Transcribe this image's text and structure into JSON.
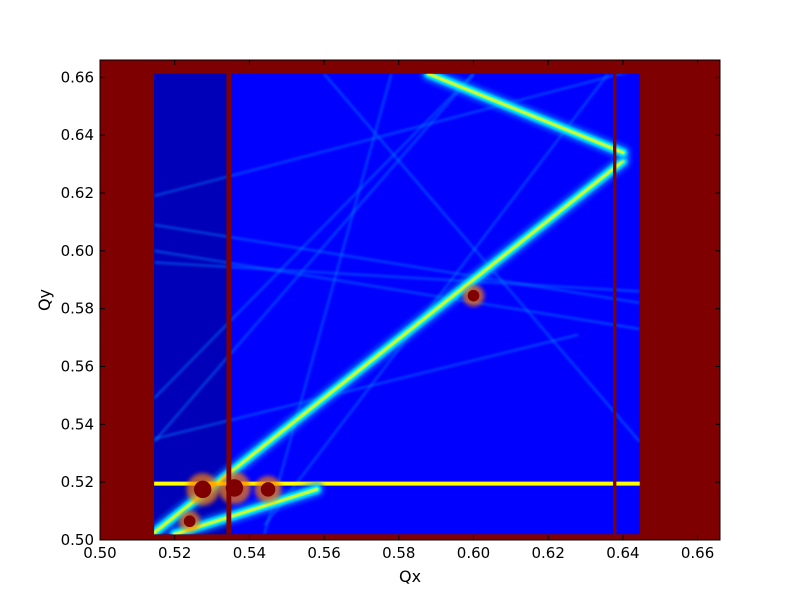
{
  "chart_data": {
    "type": "heatmap",
    "title": "",
    "xlabel": "Qx",
    "ylabel": "Qy",
    "xlim": [
      0.5,
      0.666
    ],
    "ylim": [
      0.5,
      0.666
    ],
    "grid": false,
    "legend": "none",
    "x_ticks": [
      "0.50",
      "0.52",
      "0.54",
      "0.56",
      "0.58",
      "0.60",
      "0.62",
      "0.64",
      "0.66"
    ],
    "y_ticks": [
      "0.50",
      "0.52",
      "0.54",
      "0.56",
      "0.58",
      "0.60",
      "0.62",
      "0.64",
      "0.66"
    ],
    "colormap": [
      "#00007f",
      "#0000ff",
      "#0080ff",
      "#00ffff",
      "#80ff80",
      "#ffff00",
      "#ff8000",
      "#ff0000",
      "#7f0000"
    ],
    "background_value_color": "#7f0000",
    "scan_region": {
      "x": [
        0.5145,
        0.6445
      ],
      "y": [
        0.502,
        0.6612
      ]
    },
    "colored_lines": [
      {
        "name": "diagonal-resonance",
        "x1": 0.514,
        "y1": 0.502,
        "x2": 0.64,
        "y2": 0.631,
        "level": 0.55
      },
      {
        "name": "horizontal-resonance",
        "x1": 0.5145,
        "y1": 0.5195,
        "x2": 0.6445,
        "y2": 0.5195,
        "level": 0.6
      },
      {
        "name": "upper-right-band",
        "x1": 0.588,
        "y1": 0.6612,
        "x2": 0.64,
        "y2": 0.634,
        "level": 0.5
      },
      {
        "name": "left-fan-lower",
        "x1": 0.52,
        "y1": 0.502,
        "x2": 0.558,
        "y2": 0.5175,
        "level": 0.55
      }
    ],
    "faint_lines": [
      {
        "x1": 0.5145,
        "y1": 0.619,
        "x2": 0.6445,
        "y2": 0.663
      },
      {
        "x1": 0.5145,
        "y1": 0.609,
        "x2": 0.6445,
        "y2": 0.582
      },
      {
        "x1": 0.5145,
        "y1": 0.6,
        "x2": 0.6445,
        "y2": 0.573
      },
      {
        "x1": 0.5145,
        "y1": 0.596,
        "x2": 0.6445,
        "y2": 0.586
      },
      {
        "x1": 0.56,
        "y1": 0.6612,
        "x2": 0.6445,
        "y2": 0.534
      },
      {
        "x1": 0.6,
        "y1": 0.6612,
        "x2": 0.5145,
        "y2": 0.549
      },
      {
        "x1": 0.544,
        "y1": 0.505,
        "x2": 0.636,
        "y2": 0.6612
      },
      {
        "x1": 0.5145,
        "y1": 0.534,
        "x2": 0.6,
        "y2": 0.6612
      },
      {
        "x1": 0.5145,
        "y1": 0.5535,
        "x2": 0.6445,
        "y2": 0.5535
      },
      {
        "x1": 0.5145,
        "y1": 0.535,
        "x2": 0.628,
        "y2": 0.571
      },
      {
        "x1": 0.566,
        "y1": 0.502,
        "x2": 0.566,
        "y2": 0.6612
      },
      {
        "x1": 0.6,
        "y1": 0.502,
        "x2": 0.6,
        "y2": 0.6612
      },
      {
        "x1": 0.578,
        "y1": 0.6612,
        "x2": 0.544,
        "y2": 0.502
      }
    ],
    "hot_spots": [
      {
        "x": 0.5275,
        "y": 0.5175,
        "r": 0.0018
      },
      {
        "x": 0.536,
        "y": 0.518,
        "r": 0.0018
      },
      {
        "x": 0.545,
        "y": 0.5175,
        "r": 0.0015
      },
      {
        "x": 0.524,
        "y": 0.5065,
        "r": 0.0012
      },
      {
        "x": 0.6,
        "y": 0.5845,
        "r": 0.0012
      }
    ],
    "dark_red_columns": [
      {
        "x": 0.5345,
        "width": 0.0013
      },
      {
        "x": 0.6378,
        "width": 0.0009
      }
    ]
  }
}
